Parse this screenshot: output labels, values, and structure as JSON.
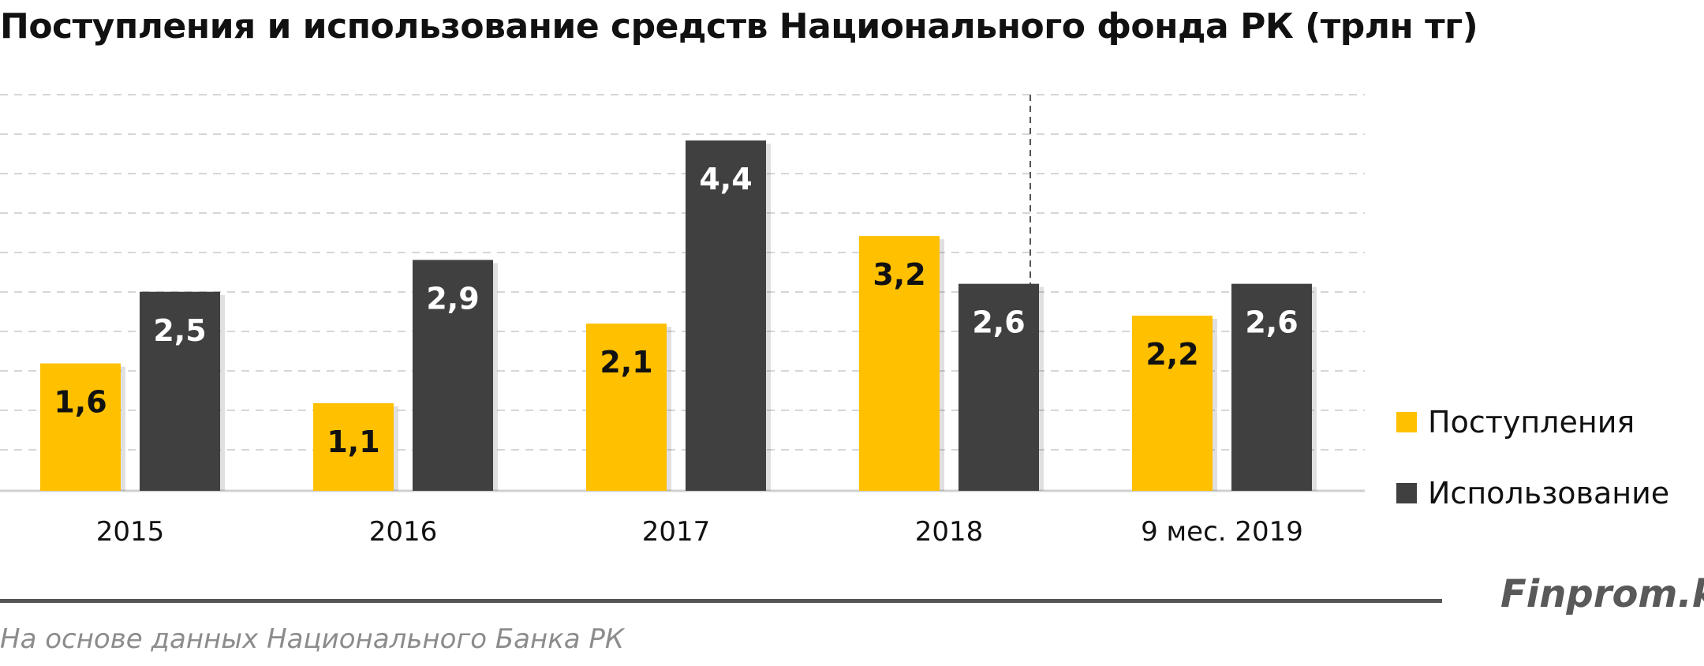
{
  "colors": {
    "income": "#FFC000",
    "usage": "#404040",
    "grid": "#d6d6d6",
    "separator": "#555555"
  },
  "chart_data": {
    "type": "bar",
    "title": "Поступления и использование средств Национального фонда РК (трлн тг)",
    "categories": [
      "2015",
      "2016",
      "2017",
      "2018",
      "9 мес. 2019"
    ],
    "series": [
      {
        "name": "Поступления",
        "values": [
          1.6,
          1.1,
          2.1,
          3.2,
          2.2
        ],
        "labels": [
          "1,6",
          "1,1",
          "2,1",
          "3,2",
          "2,2"
        ]
      },
      {
        "name": "Использование",
        "values": [
          2.5,
          2.9,
          4.4,
          2.6,
          2.6
        ],
        "labels": [
          "2,5",
          "2,9",
          "4,4",
          "2,6",
          "2,6"
        ]
      }
    ],
    "ylim": [
      0,
      5
    ],
    "grid": true,
    "legend_position": "right"
  },
  "footer": {
    "brand": "Finprom.kz",
    "source": "На основе данных Национального Банка РК"
  }
}
